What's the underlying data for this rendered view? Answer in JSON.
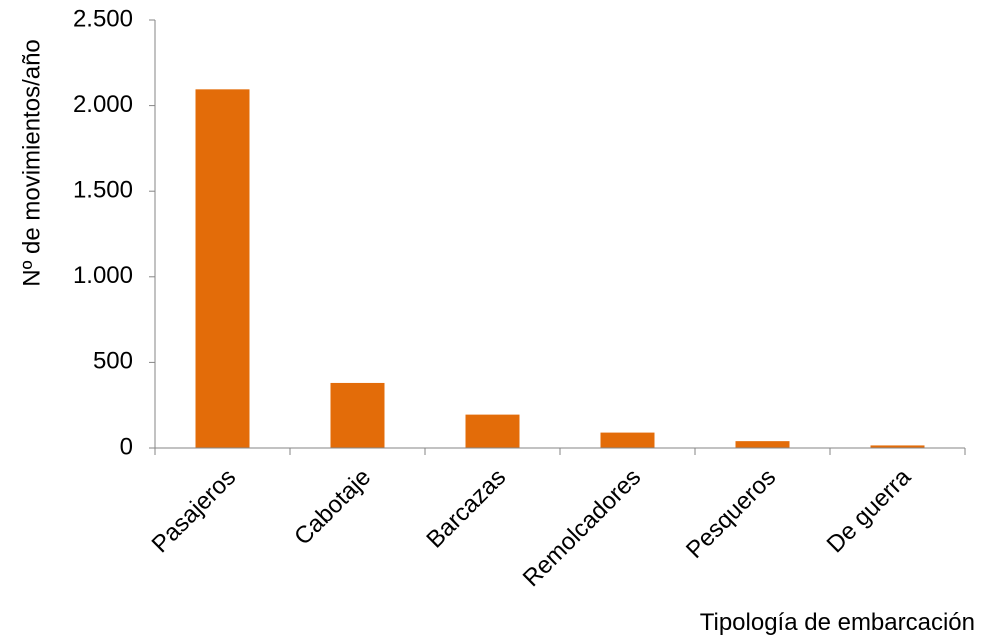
{
  "chart_data": {
    "type": "bar",
    "title": "",
    "xlabel": "Tipología de embarcación",
    "ylabel": "Nº de movimientos/año",
    "categories": [
      "Pasajeros",
      "Cabotaje",
      "Barcazas",
      "Remolcadores",
      "Pesqueros",
      "De guerra"
    ],
    "values": [
      2095,
      380,
      195,
      90,
      40,
      15
    ],
    "ylim": [
      0,
      2500
    ],
    "yticks": [
      0,
      500,
      1000,
      1500,
      2000,
      2500
    ],
    "ytick_labels": [
      "0",
      "500",
      "1.000",
      "1.500",
      "2.000",
      "2.500"
    ],
    "grid": false,
    "legend": "none",
    "bar_color": "#E36C09",
    "axis_color": "#868686"
  }
}
